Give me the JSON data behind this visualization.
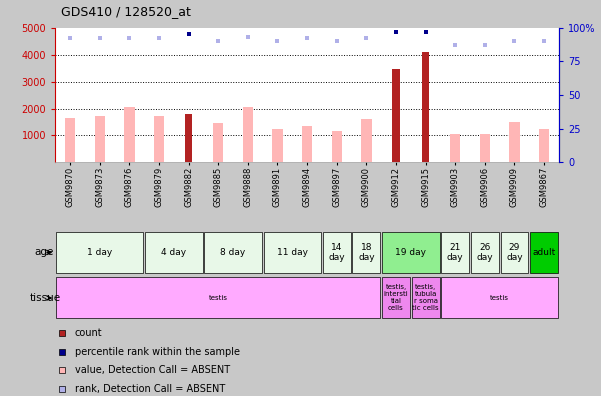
{
  "title": "GDS410 / 128520_at",
  "samples": [
    "GSM9870",
    "GSM9873",
    "GSM9876",
    "GSM9879",
    "GSM9882",
    "GSM9885",
    "GSM9888",
    "GSM9891",
    "GSM9894",
    "GSM9897",
    "GSM9900",
    "GSM9912",
    "GSM9915",
    "GSM9903",
    "GSM9906",
    "GSM9909",
    "GSM9867"
  ],
  "count_values": [
    0,
    0,
    0,
    0,
    1800,
    0,
    0,
    0,
    0,
    0,
    0,
    3450,
    4100,
    0,
    0,
    0,
    0
  ],
  "value_absent": [
    1650,
    1720,
    2050,
    1720,
    0,
    1480,
    2050,
    1230,
    1360,
    1160,
    1620,
    0,
    0,
    1050,
    1050,
    1500,
    1240
  ],
  "rank_absent": [
    92,
    92,
    92,
    92,
    95,
    90,
    93,
    90,
    92,
    90,
    92,
    97,
    97,
    87,
    87,
    90,
    90
  ],
  "rank_absent_dark": [
    false,
    false,
    false,
    false,
    true,
    false,
    false,
    false,
    false,
    false,
    false,
    true,
    true,
    false,
    false,
    false,
    false
  ],
  "ylim": [
    0,
    5000
  ],
  "yticks": [
    1000,
    2000,
    3000,
    4000,
    5000
  ],
  "ytick_labels": [
    "1000",
    "2000",
    "3000",
    "4000",
    "5000"
  ],
  "y2lim": [
    0,
    100
  ],
  "y2ticks": [
    0,
    25,
    50,
    75,
    100
  ],
  "y2tick_labels": [
    "0",
    "25",
    "50",
    "75",
    "100%"
  ],
  "bar_color_count": "#b22222",
  "bar_color_absent": "#ffb6b6",
  "rank_color_dark": "#00008b",
  "rank_color_light": "#b0b0e8",
  "age_groups": [
    {
      "label": "1 day",
      "start": 0,
      "end": 3,
      "color": "#e8f8e8"
    },
    {
      "label": "4 day",
      "start": 3,
      "end": 5,
      "color": "#e8f8e8"
    },
    {
      "label": "8 day",
      "start": 5,
      "end": 7,
      "color": "#e8f8e8"
    },
    {
      "label": "11 day",
      "start": 7,
      "end": 9,
      "color": "#e8f8e8"
    },
    {
      "label": "14\nday",
      "start": 9,
      "end": 10,
      "color": "#e8f8e8"
    },
    {
      "label": "18\nday",
      "start": 10,
      "end": 11,
      "color": "#e8f8e8"
    },
    {
      "label": "19 day",
      "start": 11,
      "end": 13,
      "color": "#90ee90"
    },
    {
      "label": "21\nday",
      "start": 13,
      "end": 14,
      "color": "#e8f8e8"
    },
    {
      "label": "26\nday",
      "start": 14,
      "end": 15,
      "color": "#e8f8e8"
    },
    {
      "label": "29\nday",
      "start": 15,
      "end": 16,
      "color": "#e8f8e8"
    },
    {
      "label": "adult",
      "start": 16,
      "end": 17,
      "color": "#00cc00"
    }
  ],
  "tissue_groups": [
    {
      "label": "testis",
      "start": 0,
      "end": 11,
      "color": "#ffaaff"
    },
    {
      "label": "testis,\nintersti\ntial\ncells",
      "start": 11,
      "end": 12,
      "color": "#ee88ee"
    },
    {
      "label": "testis,\ntubula\nr soma\ntic cells",
      "start": 12,
      "end": 13,
      "color": "#ee88ee"
    },
    {
      "label": "testis",
      "start": 13,
      "end": 17,
      "color": "#ffaaff"
    }
  ],
  "ylabel_color": "#cc0000",
  "y2label_color": "#0000cc",
  "bg_color": "#c8c8c8",
  "plot_bg": "#ffffff"
}
